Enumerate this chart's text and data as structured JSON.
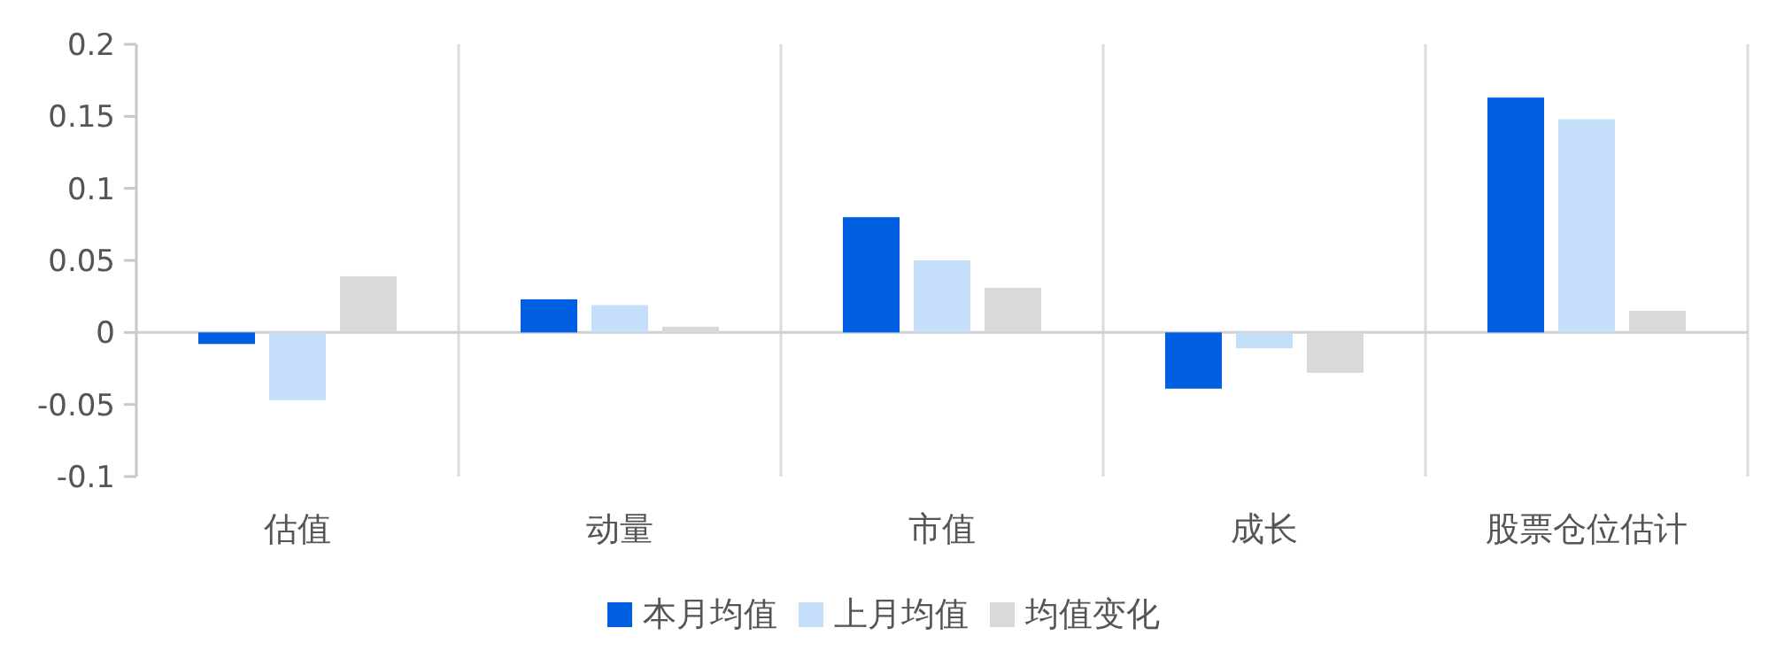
{
  "chart_data": {
    "type": "bar",
    "categories": [
      "估值",
      "动量",
      "市值",
      "成长",
      "股票仓位估计"
    ],
    "series": [
      {
        "name": "本月均值",
        "color": "#005ee0",
        "values": [
          -0.008,
          0.023,
          0.08,
          -0.039,
          0.163
        ]
      },
      {
        "name": "上月均值",
        "color": "#c5dffb",
        "values": [
          -0.047,
          0.019,
          0.05,
          -0.011,
          0.148
        ]
      },
      {
        "name": "均值变化",
        "color": "#d9d9d9",
        "values": [
          0.039,
          0.004,
          0.031,
          -0.028,
          0.015
        ]
      }
    ],
    "ylim": [
      -0.1,
      0.2
    ],
    "yticks": [
      -0.1,
      -0.05,
      0,
      0.05,
      0.1,
      0.15,
      0.2
    ],
    "grid": "x",
    "legend": "bottom"
  }
}
